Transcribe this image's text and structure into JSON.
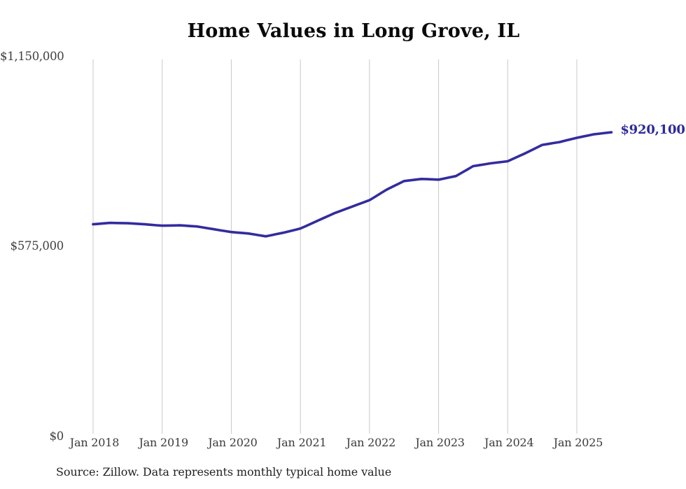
{
  "source_note": "Source: Zillow. Data represents monthly typical home value",
  "chart_data": {
    "type": "line",
    "title": "Home Values in Long Grove, IL",
    "xlabel": "",
    "ylabel": "",
    "ylim": [
      0,
      1150000
    ],
    "grid": "vertical-only",
    "legend": "none",
    "line_color": "#332c9e",
    "grid_color": "#c9c9c9",
    "latest_value_label": "$920,100",
    "latest_value": 920100,
    "y_ticks": [
      {
        "label": "$0",
        "value": 0
      },
      {
        "label": "$575,000",
        "value": 575000
      },
      {
        "label": "$1,150,000",
        "value": 1150000
      }
    ],
    "x_ticks": [
      {
        "label": "Jan 2018",
        "month_index": 0
      },
      {
        "label": "Jan 2019",
        "month_index": 12
      },
      {
        "label": "Jan 2020",
        "month_index": 24
      },
      {
        "label": "Jan 2021",
        "month_index": 36
      },
      {
        "label": "Jan 2022",
        "month_index": 48
      },
      {
        "label": "Jan 2023",
        "month_index": 60
      },
      {
        "label": "Jan 2024",
        "month_index": 72
      },
      {
        "label": "Jan 2025",
        "month_index": 84
      }
    ],
    "series_name": "Typical home value",
    "start_month": "2018-01",
    "frequency": "monthly",
    "values": [
      641500,
      642900,
      644400,
      645800,
      645400,
      645100,
      644700,
      643600,
      642600,
      641500,
      640100,
      638600,
      637200,
      637600,
      637900,
      638300,
      637200,
      636100,
      635000,
      632200,
      629300,
      626500,
      623600,
      620800,
      617900,
      616500,
      615000,
      613600,
      610700,
      607900,
      605000,
      608600,
      612200,
      615800,
      620100,
      624400,
      628700,
      636500,
      644400,
      652200,
      660100,
      667900,
      675800,
      682200,
      688700,
      695100,
      701600,
      708000,
      714500,
      725200,
      735900,
      746600,
      755200,
      763800,
      772400,
      774500,
      776700,
      778800,
      778100,
      777400,
      776700,
      780300,
      783800,
      787400,
      797400,
      807400,
      817400,
      820300,
      823100,
      826000,
      828100,
      830300,
      832400,
      840300,
      848100,
      856000,
      864600,
      873200,
      881800,
      884700,
      887500,
      890400,
      894700,
      899000,
      903300,
      906900,
      910400,
      914000,
      916000,
      918100,
      920100
    ]
  }
}
